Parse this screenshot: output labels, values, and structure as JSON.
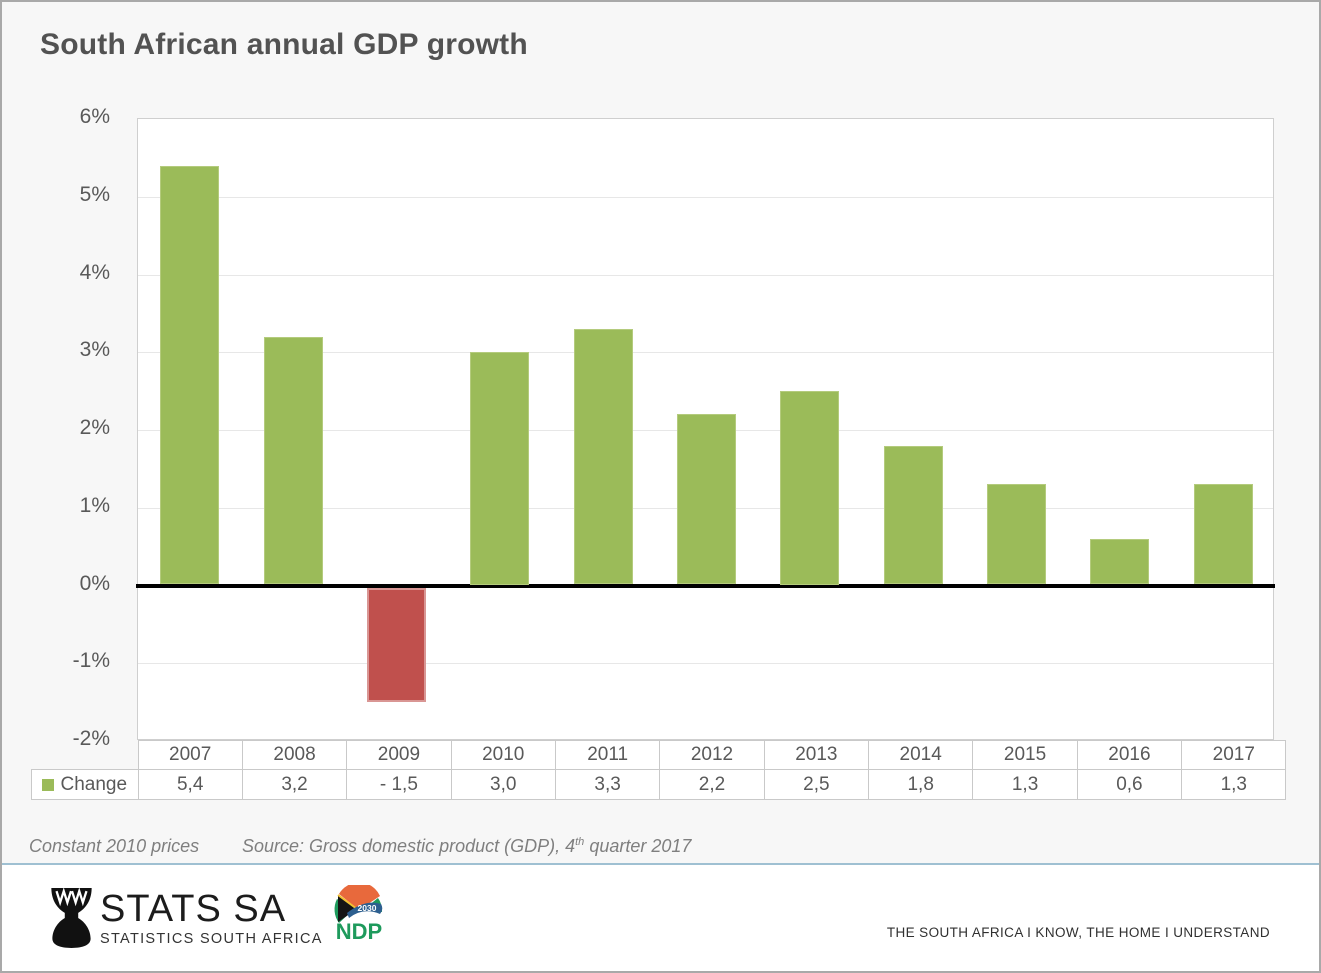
{
  "title": "South African annual GDP growth",
  "chart_data": {
    "type": "bar",
    "title": "South African annual GDP growth",
    "categories": [
      "2007",
      "2008",
      "2009",
      "2010",
      "2011",
      "2012",
      "2013",
      "2014",
      "2015",
      "2016",
      "2017"
    ],
    "series": [
      {
        "name": "Change",
        "values": [
          5.4,
          3.2,
          -1.5,
          3.0,
          3.3,
          2.2,
          2.5,
          1.8,
          1.3,
          0.6,
          1.3
        ]
      }
    ],
    "value_labels": [
      "5,4",
      "3,2",
      "- 1,5",
      "3,0",
      "3,3",
      "2,2",
      "2,5",
      "1,8",
      "1,3",
      "0,6",
      "1,3"
    ],
    "xlabel": "",
    "ylabel": "",
    "ylim": [
      -2,
      6
    ],
    "ytick_values": [
      6,
      5,
      4,
      3,
      2,
      1,
      0,
      -1,
      -2
    ],
    "ytick_labels": [
      "6%",
      "5%",
      "4%",
      "3%",
      "2%",
      "1%",
      "0%",
      "-1%",
      "-2%"
    ],
    "grid": true,
    "legend_label": "Change",
    "legend_position": "data-table-left",
    "positive_color": "#9bbb59",
    "negative_color": "#c0504d"
  },
  "footer": {
    "note": "Constant 2010 prices",
    "source_prefix": "Source: Gross domestic product (GDP), 4",
    "source_sup": "th",
    "source_suffix": " quarter 2017"
  },
  "branding": {
    "stats_sa_name": "STATS SA",
    "stats_sa_subtitle": "STATISTICS SOUTH AFRICA",
    "ndp_label": "NDP",
    "ndp_year": "2030",
    "tagline": "THE SOUTH AFRICA I KNOW, THE HOME I UNDERSTAND"
  },
  "colors": {
    "positive_bar": "#9bbb59",
    "negative_bar": "#c0504d",
    "zero_axis": "#000000",
    "gridline": "#e7e7e7",
    "text_gray": "#595959",
    "divider_blue": "#9fc0d2",
    "background": "#f7f7f7",
    "plot_background": "#ffffff"
  }
}
